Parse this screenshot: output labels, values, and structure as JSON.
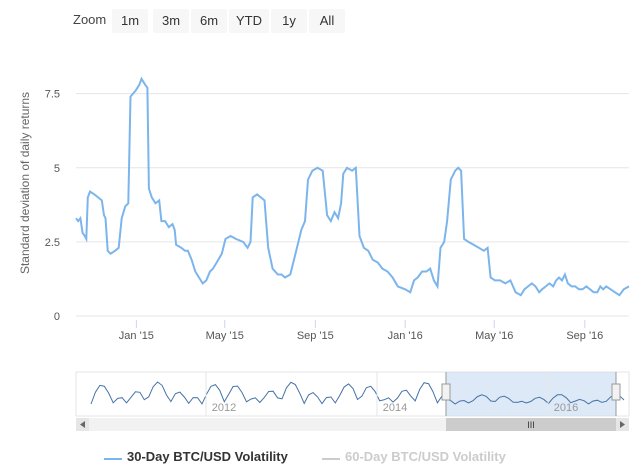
{
  "zoom": {
    "label": "Zoom",
    "buttons": [
      "1m",
      "3m",
      "6m",
      "YTD",
      "1y",
      "All"
    ]
  },
  "navigator": {
    "year_labels": [
      "2012",
      "2014",
      "2016"
    ],
    "scrollbar_grip": "III"
  },
  "colors": {
    "series1": "#7cb5ec",
    "series2": "#cccccc",
    "grid": "#e6e6e6",
    "navigator_mask": "#c6dbf2"
  },
  "chart_data": {
    "type": "line",
    "title": "",
    "ylabel": "Standard deviation of daily returns",
    "xlabel": "",
    "ylim": [
      0,
      8.5
    ],
    "y_ticks": [
      "0",
      "2.5",
      "5",
      "7.5"
    ],
    "x_ticks": [
      {
        "date": "2015-01-01",
        "label": "Jan '15"
      },
      {
        "date": "2015-05-01",
        "label": "May '15"
      },
      {
        "date": "2015-09-01",
        "label": "Sep '15"
      },
      {
        "date": "2016-01-01",
        "label": "Jan '16"
      },
      {
        "date": "2016-05-01",
        "label": "May '16"
      },
      {
        "date": "2016-09-01",
        "label": "Sep '16"
      }
    ],
    "xlim": [
      "2014-10-11",
      "2016-10-31"
    ],
    "series": [
      {
        "name": "30-Day BTC/USD Volatility",
        "visible": true,
        "points": [
          [
            "2014-10-11",
            3.3
          ],
          [
            "2014-10-14",
            3.2
          ],
          [
            "2014-10-17",
            3.3
          ],
          [
            "2014-10-20",
            2.8
          ],
          [
            "2014-10-23",
            2.7
          ],
          [
            "2014-10-25",
            2.6
          ],
          [
            "2014-10-27",
            4.0
          ],
          [
            "2014-10-30",
            4.2
          ],
          [
            "2014-11-05",
            4.1
          ],
          [
            "2014-11-10",
            4.0
          ],
          [
            "2014-11-15",
            3.9
          ],
          [
            "2014-11-18",
            3.4
          ],
          [
            "2014-11-20",
            3.3
          ],
          [
            "2014-11-23",
            2.2
          ],
          [
            "2014-11-27",
            2.1
          ],
          [
            "2014-12-03",
            2.2
          ],
          [
            "2014-12-08",
            2.3
          ],
          [
            "2014-12-12",
            3.3
          ],
          [
            "2014-12-17",
            3.7
          ],
          [
            "2014-12-21",
            3.8
          ],
          [
            "2014-12-24",
            7.4
          ],
          [
            "2014-12-31",
            7.6
          ],
          [
            "2015-01-05",
            7.8
          ],
          [
            "2015-01-08",
            8.0
          ],
          [
            "2015-01-13",
            7.8
          ],
          [
            "2015-01-16",
            7.7
          ],
          [
            "2015-01-18",
            4.3
          ],
          [
            "2015-01-22",
            4.0
          ],
          [
            "2015-01-27",
            3.8
          ],
          [
            "2015-02-01",
            3.9
          ],
          [
            "2015-02-04",
            3.2
          ],
          [
            "2015-02-09",
            3.2
          ],
          [
            "2015-02-14",
            3.0
          ],
          [
            "2015-02-19",
            3.1
          ],
          [
            "2015-02-22",
            2.9
          ],
          [
            "2015-02-24",
            2.4
          ],
          [
            "2015-03-03",
            2.3
          ],
          [
            "2015-03-08",
            2.2
          ],
          [
            "2015-03-12",
            2.2
          ],
          [
            "2015-03-17",
            1.9
          ],
          [
            "2015-03-22",
            1.5
          ],
          [
            "2015-03-27",
            1.3
          ],
          [
            "2015-04-01",
            1.1
          ],
          [
            "2015-04-06",
            1.2
          ],
          [
            "2015-04-11",
            1.5
          ],
          [
            "2015-04-15",
            1.6
          ],
          [
            "2015-04-20",
            1.8
          ],
          [
            "2015-04-27",
            2.1
          ],
          [
            "2015-05-02",
            2.6
          ],
          [
            "2015-05-09",
            2.7
          ],
          [
            "2015-05-16",
            2.6
          ],
          [
            "2015-05-26",
            2.5
          ],
          [
            "2015-06-01",
            2.3
          ],
          [
            "2015-06-05",
            2.5
          ],
          [
            "2015-06-08",
            4.0
          ],
          [
            "2015-06-14",
            4.1
          ],
          [
            "2015-06-19",
            4.0
          ],
          [
            "2015-06-24",
            3.9
          ],
          [
            "2015-06-29",
            2.3
          ],
          [
            "2015-07-05",
            1.6
          ],
          [
            "2015-07-12",
            1.4
          ],
          [
            "2015-07-17",
            1.4
          ],
          [
            "2015-07-22",
            1.3
          ],
          [
            "2015-07-29",
            1.4
          ],
          [
            "2015-08-06",
            2.2
          ],
          [
            "2015-08-13",
            2.9
          ],
          [
            "2015-08-18",
            3.2
          ],
          [
            "2015-08-22",
            4.6
          ],
          [
            "2015-08-28",
            4.9
          ],
          [
            "2015-09-04",
            5.0
          ],
          [
            "2015-09-11",
            4.9
          ],
          [
            "2015-09-17",
            3.4
          ],
          [
            "2015-09-22",
            3.2
          ],
          [
            "2015-09-27",
            3.5
          ],
          [
            "2015-10-02",
            3.3
          ],
          [
            "2015-10-06",
            3.8
          ],
          [
            "2015-10-09",
            4.8
          ],
          [
            "2015-10-14",
            5.0
          ],
          [
            "2015-10-21",
            4.9
          ],
          [
            "2015-10-26",
            5.0
          ],
          [
            "2015-10-31",
            2.7
          ],
          [
            "2015-11-06",
            2.3
          ],
          [
            "2015-11-12",
            2.2
          ],
          [
            "2015-11-18",
            1.9
          ],
          [
            "2015-11-25",
            1.8
          ],
          [
            "2015-12-01",
            1.6
          ],
          [
            "2015-12-08",
            1.5
          ],
          [
            "2015-12-15",
            1.3
          ],
          [
            "2015-12-22",
            1.0
          ],
          [
            "2016-01-01",
            0.9
          ],
          [
            "2016-01-08",
            0.8
          ],
          [
            "2016-01-13",
            1.2
          ],
          [
            "2016-01-18",
            1.3
          ],
          [
            "2016-01-24",
            1.5
          ],
          [
            "2016-01-30",
            1.5
          ],
          [
            "2016-02-04",
            1.6
          ],
          [
            "2016-02-09",
            1.2
          ],
          [
            "2016-02-14",
            1.0
          ],
          [
            "2016-02-18",
            2.3
          ],
          [
            "2016-02-23",
            2.5
          ],
          [
            "2016-02-27",
            3.2
          ],
          [
            "2016-03-03",
            4.6
          ],
          [
            "2016-03-09",
            4.9
          ],
          [
            "2016-03-13",
            5.0
          ],
          [
            "2016-03-17",
            4.9
          ],
          [
            "2016-03-21",
            2.6
          ],
          [
            "2016-03-27",
            2.5
          ],
          [
            "2016-04-03",
            2.4
          ],
          [
            "2016-04-10",
            2.3
          ],
          [
            "2016-04-17",
            2.2
          ],
          [
            "2016-04-22",
            2.3
          ],
          [
            "2016-04-26",
            1.3
          ],
          [
            "2016-05-02",
            1.2
          ],
          [
            "2016-05-09",
            1.2
          ],
          [
            "2016-05-16",
            1.1
          ],
          [
            "2016-05-23",
            1.2
          ],
          [
            "2016-05-30",
            0.8
          ],
          [
            "2016-06-06",
            0.7
          ],
          [
            "2016-06-11",
            0.9
          ],
          [
            "2016-06-16",
            1.0
          ],
          [
            "2016-06-21",
            1.1
          ],
          [
            "2016-06-26",
            1.0
          ],
          [
            "2016-07-01",
            0.8
          ],
          [
            "2016-07-05",
            0.9
          ],
          [
            "2016-07-10",
            1.0
          ],
          [
            "2016-07-15",
            1.1
          ],
          [
            "2016-07-20",
            1.0
          ],
          [
            "2016-07-24",
            1.2
          ],
          [
            "2016-07-28",
            1.3
          ],
          [
            "2016-08-01",
            1.2
          ],
          [
            "2016-08-05",
            1.4
          ],
          [
            "2016-08-09",
            1.1
          ],
          [
            "2016-08-14",
            1.0
          ],
          [
            "2016-08-19",
            1.0
          ],
          [
            "2016-08-24",
            0.9
          ],
          [
            "2016-08-29",
            0.9
          ],
          [
            "2016-09-03",
            1.0
          ],
          [
            "2016-09-08",
            0.9
          ],
          [
            "2016-09-13",
            0.8
          ],
          [
            "2016-09-18",
            0.8
          ],
          [
            "2016-09-22",
            1.0
          ],
          [
            "2016-09-26",
            0.9
          ],
          [
            "2016-09-30",
            1.0
          ],
          [
            "2016-10-06",
            0.9
          ],
          [
            "2016-10-12",
            0.8
          ],
          [
            "2016-10-18",
            0.7
          ],
          [
            "2016-10-24",
            0.9
          ],
          [
            "2016-10-31",
            1.0
          ]
        ]
      },
      {
        "name": "60-Day BTC/USD Volatility",
        "visible": false,
        "points": []
      }
    ],
    "legend": "bottom",
    "grid": true
  }
}
